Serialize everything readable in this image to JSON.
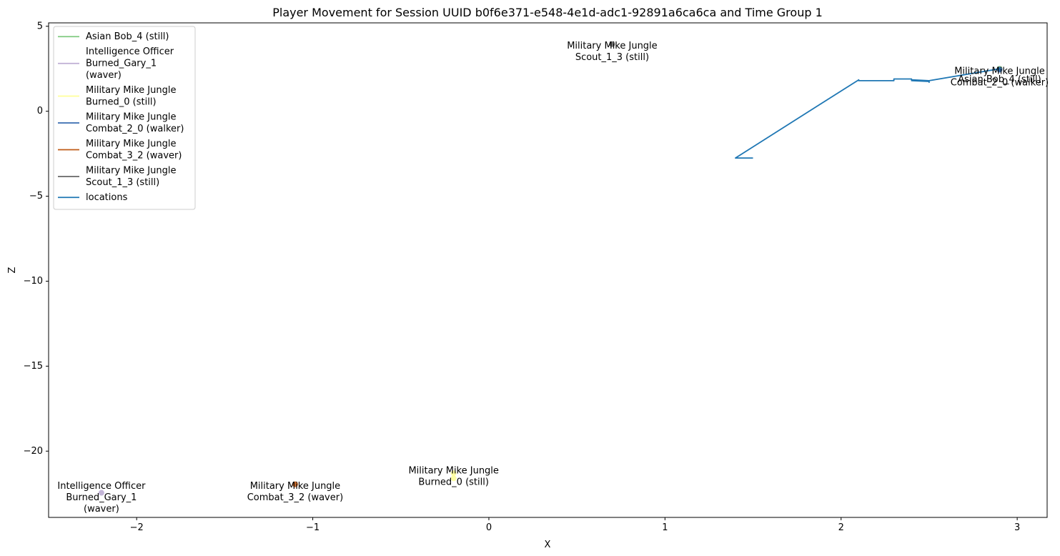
{
  "chart_data": {
    "type": "line",
    "title": "Player Movement for Session UUID b0f6e371-e548-4e1d-adc1-92891a6ca6ca and Time Group 1",
    "xlabel": "X",
    "ylabel": "Z",
    "xlim": [
      -2.5,
      3.17
    ],
    "ylim": [
      -23.9,
      5.2
    ],
    "xticks": [
      -2,
      -1,
      0,
      1,
      2,
      3
    ],
    "xtick_labels": [
      "−2",
      "−1",
      "0",
      "1",
      "2",
      "3"
    ],
    "yticks": [
      5,
      0,
      -5,
      -10,
      -15,
      -20
    ],
    "ytick_labels": [
      "5",
      "0",
      "−5",
      "−10",
      "−15",
      "−20"
    ],
    "grid": false,
    "legend_position": "upper-left",
    "legend": [
      {
        "label": [
          "Asian Bob_4 (still)"
        ],
        "color": "#7fc97f"
      },
      {
        "label": [
          "Intelligence Officer",
          "Burned_Gary_1",
          "(waver)"
        ],
        "color": "#beaed4"
      },
      {
        "label": [
          "Military Mike Jungle",
          "Burned_0 (still)"
        ],
        "color": "#ffff99"
      },
      {
        "label": [
          "Military Mike Jungle",
          "Combat_2_0 (walker)"
        ],
        "color": "#386cb0"
      },
      {
        "label": [
          "Military Mike Jungle",
          "Combat_3_2 (waver)"
        ],
        "color": "#bf5b17"
      },
      {
        "label": [
          "Military Mike Jungle",
          "Scout_1_3 (still)"
        ],
        "color": "#666666"
      },
      {
        "label": [
          "locations"
        ],
        "color": "#1f77b4"
      }
    ],
    "series": [
      {
        "name": "locations",
        "color": "#1f77b4",
        "x": [
          1.5,
          1.4,
          2.1,
          2.1,
          2.3,
          2.3,
          2.4,
          2.4,
          2.5,
          2.5,
          2.5,
          2.5,
          2.4,
          2.5,
          2.9,
          2.9
        ],
        "y": [
          -2.75,
          -2.75,
          1.85,
          1.8,
          1.8,
          1.9,
          1.9,
          1.85,
          1.8,
          1.7,
          1.8,
          1.75,
          1.8,
          1.8,
          2.5,
          2.4
        ]
      }
    ],
    "points": [
      {
        "x": 2.9,
        "y": 2.5,
        "color": "#7fc97f"
      },
      {
        "x": -2.2,
        "y": -22.45,
        "color": "#beaed4"
      },
      {
        "x": -0.2,
        "y": -21.3,
        "color": "#ffff99"
      },
      {
        "x": -0.2,
        "y": -21.6,
        "color": "#ffff99"
      },
      {
        "x": 2.9,
        "y": 2.45,
        "color": "#386cb0"
      },
      {
        "x": -1.1,
        "y": -21.95,
        "color": "#bf5b17"
      },
      {
        "x": 0.7,
        "y": 3.95,
        "color": "#666666"
      }
    ],
    "annotations": [
      {
        "lines": [
          "Military Mike Jungle",
          "Scout_1_3 (still)"
        ],
        "x": 0.7,
        "y": 3.5
      },
      {
        "lines": [
          "Military Mike Jungle",
          "Combat_2_0 (walker)"
        ],
        "x": 2.9,
        "y": 2.0
      },
      {
        "lines": [
          "Asian Bob_4 (still)"
        ],
        "x": 2.9,
        "y": 1.85
      },
      {
        "lines": [
          "Military Mike Jungle",
          "Burned_0 (still)"
        ],
        "x": -0.2,
        "y": -21.5
      },
      {
        "lines": [
          "Military Mike Jungle",
          "Combat_3_2 (waver)"
        ],
        "x": -1.1,
        "y": -22.4
      },
      {
        "lines": [
          "Intelligence Officer",
          "Burned_Gary_1",
          "(waver)"
        ],
        "x": -2.2,
        "y": -22.75
      }
    ]
  }
}
